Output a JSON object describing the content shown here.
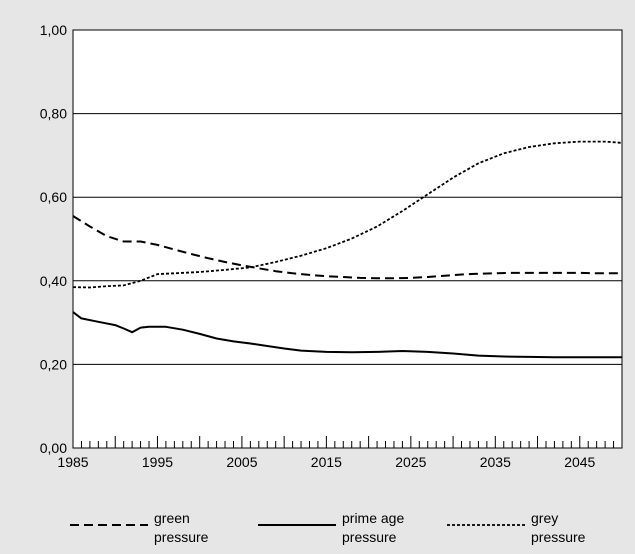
{
  "chart_data": {
    "type": "line",
    "title": "",
    "xlabel": "",
    "ylabel": "",
    "xlim": [
      1985,
      2050
    ],
    "ylim": [
      0,
      1
    ],
    "x_ticks": [
      1985,
      1995,
      2005,
      2015,
      2025,
      2035,
      2045
    ],
    "x_tick_labels": [
      "1985",
      "1995",
      "2005",
      "2015",
      "2025",
      "2035",
      "2045"
    ],
    "y_ticks": [
      0,
      0.2,
      0.4,
      0.6,
      0.8,
      1.0
    ],
    "y_tick_labels": [
      "0,00",
      "0,20",
      "0,40",
      "0,60",
      "0,80",
      "1,00"
    ],
    "grid": "horizontal",
    "legend_position": "bottom",
    "series": [
      {
        "name": "green pressure",
        "name_lines": [
          "green",
          "pressure"
        ],
        "style": "dashed",
        "x": [
          1985,
          1987,
          1989,
          1991,
          1993,
          1995,
          1997,
          1999,
          2001,
          2003,
          2005,
          2007,
          2009,
          2011,
          2013,
          2015,
          2017,
          2019,
          2021,
          2023,
          2025,
          2027,
          2029,
          2031,
          2033,
          2035,
          2037,
          2039,
          2041,
          2043,
          2045,
          2047,
          2050
        ],
        "values": [
          0.555,
          0.53,
          0.507,
          0.494,
          0.494,
          0.486,
          0.475,
          0.464,
          0.454,
          0.445,
          0.437,
          0.43,
          0.423,
          0.418,
          0.414,
          0.411,
          0.409,
          0.407,
          0.406,
          0.406,
          0.407,
          0.409,
          0.412,
          0.415,
          0.417,
          0.418,
          0.419,
          0.419,
          0.419,
          0.419,
          0.419,
          0.418,
          0.418
        ]
      },
      {
        "name": "prime age pressure",
        "name_lines": [
          "prime age",
          "pressure"
        ],
        "style": "solid",
        "x": [
          1985,
          1986,
          1988,
          1990,
          1991,
          1992,
          1993,
          1994,
          1995,
          1996,
          1998,
          2000,
          2002,
          2004,
          2006,
          2008,
          2010,
          2012,
          2015,
          2018,
          2021,
          2024,
          2027,
          2030,
          2033,
          2036,
          2039,
          2042,
          2045,
          2048,
          2050
        ],
        "values": [
          0.325,
          0.31,
          0.302,
          0.294,
          0.286,
          0.277,
          0.288,
          0.29,
          0.29,
          0.29,
          0.283,
          0.273,
          0.262,
          0.255,
          0.25,
          0.244,
          0.238,
          0.233,
          0.23,
          0.229,
          0.23,
          0.232,
          0.23,
          0.226,
          0.221,
          0.219,
          0.218,
          0.217,
          0.217,
          0.217,
          0.217
        ]
      },
      {
        "name": "grey pressure",
        "name_lines": [
          "grey",
          "pressure"
        ],
        "style": "dotted",
        "x": [
          1985,
          1987,
          1989,
          1991,
          1993,
          1995,
          1997,
          2000,
          2003,
          2006,
          2009,
          2012,
          2015,
          2018,
          2021,
          2024,
          2027,
          2030,
          2033,
          2036,
          2039,
          2042,
          2045,
          2048,
          2050
        ],
        "values": [
          0.385,
          0.384,
          0.387,
          0.389,
          0.4,
          0.416,
          0.418,
          0.421,
          0.426,
          0.432,
          0.445,
          0.46,
          0.478,
          0.501,
          0.53,
          0.567,
          0.607,
          0.647,
          0.681,
          0.705,
          0.72,
          0.729,
          0.733,
          0.733,
          0.73
        ]
      }
    ]
  }
}
